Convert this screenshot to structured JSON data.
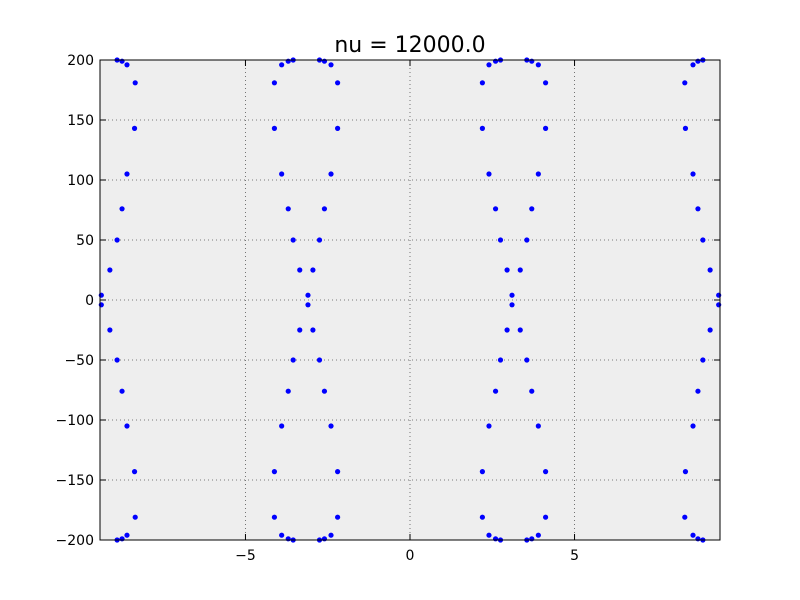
{
  "chart_data": {
    "type": "scatter",
    "title": "nu = 12000.0",
    "xlabel": "",
    "ylabel": "",
    "xlim": [
      -9.42,
      9.42
    ],
    "ylim": [
      -200,
      200
    ],
    "xticks": [
      -5,
      0,
      5
    ],
    "xtick_labels": [
      "−5",
      "0",
      "5"
    ],
    "yticks": [
      -200,
      -150,
      -100,
      -50,
      0,
      50,
      100,
      150,
      200
    ],
    "ytick_labels": [
      "−200",
      "−150",
      "−100",
      "−50",
      "0",
      "50",
      "100",
      "150",
      "200"
    ],
    "grid": true,
    "colors": {
      "marker": "#0000ff",
      "plot_background": "#eeeeee",
      "grid": "#555555"
    },
    "points": [
      [
        -9.38,
        4
      ],
      [
        -9.38,
        -4
      ],
      [
        -9.12,
        25
      ],
      [
        -9.12,
        -25
      ],
      [
        -8.9,
        50
      ],
      [
        -8.9,
        -50
      ],
      [
        -8.75,
        76
      ],
      [
        -8.75,
        -76
      ],
      [
        -8.6,
        105
      ],
      [
        -8.6,
        -105
      ],
      [
        -8.37,
        143
      ],
      [
        -8.37,
        -143
      ],
      [
        -8.35,
        181
      ],
      [
        -8.35,
        -181
      ],
      [
        -8.6,
        196
      ],
      [
        -8.6,
        -196
      ],
      [
        -8.75,
        199
      ],
      [
        -8.75,
        -199
      ],
      [
        -8.9,
        200
      ],
      [
        -8.9,
        -200
      ],
      [
        -3.1,
        4
      ],
      [
        -3.1,
        -4
      ],
      [
        -3.35,
        25
      ],
      [
        -3.35,
        -25
      ],
      [
        -2.95,
        25
      ],
      [
        -2.95,
        -25
      ],
      [
        -3.55,
        50
      ],
      [
        -3.55,
        -50
      ],
      [
        -2.75,
        50
      ],
      [
        -2.75,
        -50
      ],
      [
        -3.7,
        76
      ],
      [
        -3.7,
        -76
      ],
      [
        -2.6,
        76
      ],
      [
        -2.6,
        -76
      ],
      [
        -3.9,
        105
      ],
      [
        -3.9,
        -105
      ],
      [
        -2.4,
        105
      ],
      [
        -2.4,
        -105
      ],
      [
        -4.12,
        143
      ],
      [
        -4.12,
        -143
      ],
      [
        -2.2,
        143
      ],
      [
        -2.2,
        -143
      ],
      [
        -4.12,
        181
      ],
      [
        -4.12,
        -181
      ],
      [
        -2.2,
        181
      ],
      [
        -2.2,
        -181
      ],
      [
        -3.9,
        196
      ],
      [
        -3.9,
        -196
      ],
      [
        -2.4,
        196
      ],
      [
        -2.4,
        -196
      ],
      [
        -3.7,
        199
      ],
      [
        -3.7,
        -199
      ],
      [
        -2.6,
        199
      ],
      [
        -2.6,
        -199
      ],
      [
        -3.55,
        200
      ],
      [
        -3.55,
        -200
      ],
      [
        -2.75,
        200
      ],
      [
        -2.75,
        -200
      ],
      [
        3.1,
        4
      ],
      [
        3.1,
        -4
      ],
      [
        3.35,
        25
      ],
      [
        3.35,
        -25
      ],
      [
        2.95,
        25
      ],
      [
        2.95,
        -25
      ],
      [
        3.55,
        50
      ],
      [
        3.55,
        -50
      ],
      [
        2.75,
        50
      ],
      [
        2.75,
        -50
      ],
      [
        3.7,
        76
      ],
      [
        3.7,
        -76
      ],
      [
        2.6,
        76
      ],
      [
        2.6,
        -76
      ],
      [
        3.9,
        105
      ],
      [
        3.9,
        -105
      ],
      [
        2.4,
        105
      ],
      [
        2.4,
        -105
      ],
      [
        4.12,
        143
      ],
      [
        4.12,
        -143
      ],
      [
        2.2,
        143
      ],
      [
        2.2,
        -143
      ],
      [
        4.12,
        181
      ],
      [
        4.12,
        -181
      ],
      [
        2.2,
        181
      ],
      [
        2.2,
        -181
      ],
      [
        3.9,
        196
      ],
      [
        3.9,
        -196
      ],
      [
        2.4,
        196
      ],
      [
        2.4,
        -196
      ],
      [
        3.7,
        199
      ],
      [
        3.7,
        -199
      ],
      [
        2.6,
        199
      ],
      [
        2.6,
        -199
      ],
      [
        3.55,
        200
      ],
      [
        3.55,
        -200
      ],
      [
        2.75,
        200
      ],
      [
        2.75,
        -200
      ],
      [
        9.38,
        4
      ],
      [
        9.38,
        -4
      ],
      [
        9.12,
        25
      ],
      [
        9.12,
        -25
      ],
      [
        8.9,
        50
      ],
      [
        8.9,
        -50
      ],
      [
        8.75,
        76
      ],
      [
        8.75,
        -76
      ],
      [
        8.6,
        105
      ],
      [
        8.6,
        -105
      ],
      [
        8.37,
        143
      ],
      [
        8.37,
        -143
      ],
      [
        8.35,
        181
      ],
      [
        8.35,
        -181
      ],
      [
        8.6,
        196
      ],
      [
        8.6,
        -196
      ],
      [
        8.75,
        199
      ],
      [
        8.75,
        -199
      ],
      [
        8.9,
        200
      ],
      [
        8.9,
        -200
      ]
    ]
  }
}
